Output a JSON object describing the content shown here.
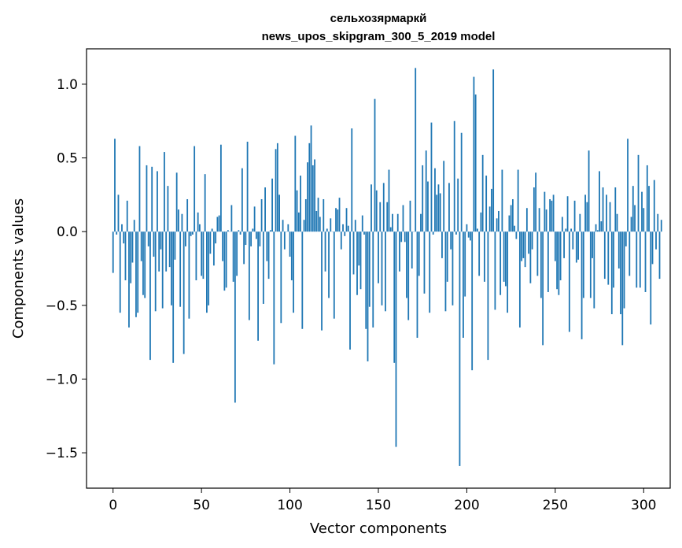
{
  "chart_data": {
    "type": "bar",
    "title": "сельхозярмаркй",
    "subtitle": "news_upos_skipgram_300_5_2019 model",
    "xlabel": "Vector components",
    "ylabel": "Components values",
    "xlim": [
      -15,
      315
    ],
    "ylim": [
      -1.74,
      1.24
    ],
    "xticks": [
      {
        "value": 0,
        "label": "0"
      },
      {
        "value": 50,
        "label": "50"
      },
      {
        "value": 100,
        "label": "100"
      },
      {
        "value": 150,
        "label": "150"
      },
      {
        "value": 200,
        "label": "200"
      },
      {
        "value": 250,
        "label": "250"
      },
      {
        "value": 300,
        "label": "300"
      }
    ],
    "yticks": [
      {
        "value": 1.0,
        "label": "1.0"
      },
      {
        "value": 0.5,
        "label": "0.5"
      },
      {
        "value": 0.0,
        "label": "0.0"
      },
      {
        "value": -0.5,
        "label": "−0.5"
      },
      {
        "value": -1.0,
        "label": "−1.0"
      },
      {
        "value": -1.5,
        "label": "−1.5"
      }
    ],
    "grid": false,
    "bar_color": "#1f77b4",
    "values": [
      -0.28,
      0.63,
      -0.02,
      0.25,
      -0.55,
      0.05,
      -0.08,
      -0.33,
      0.21,
      -0.65,
      -0.35,
      -0.21,
      0.08,
      -0.58,
      -0.55,
      0.58,
      -0.2,
      -0.43,
      -0.45,
      0.45,
      -0.1,
      -0.87,
      0.44,
      -0.17,
      -0.54,
      0.41,
      -0.27,
      -0.12,
      -0.52,
      0.54,
      -0.27,
      0.31,
      -0.24,
      -0.5,
      -0.89,
      -0.19,
      0.4,
      0.15,
      -0.51,
      0.12,
      -0.83,
      -0.1,
      0.22,
      -0.59,
      -0.03,
      -0.02,
      0.58,
      -0.33,
      0.13,
      0.05,
      -0.3,
      -0.32,
      0.39,
      -0.55,
      -0.5,
      -0.15,
      0.02,
      -0.23,
      -0.08,
      0.1,
      0.11,
      0.59,
      -0.2,
      -0.4,
      -0.38,
      0.01,
      0.0,
      0.18,
      -0.34,
      -1.16,
      -0.3,
      0.01,
      -0.02,
      0.43,
      -0.22,
      -0.09,
      0.61,
      -0.6,
      -0.1,
      0.02,
      0.17,
      -0.05,
      -0.74,
      -0.1,
      0.22,
      -0.49,
      0.3,
      -0.2,
      -0.32,
      0.01,
      0.36,
      -0.9,
      0.56,
      0.6,
      0.25,
      -0.62,
      0.08,
      -0.12,
      0.0,
      0.05,
      -0.17,
      -0.33,
      -0.55,
      0.65,
      0.28,
      0.13,
      0.38,
      -0.66,
      0.08,
      0.22,
      0.47,
      0.6,
      0.72,
      0.45,
      0.49,
      0.14,
      0.23,
      0.1,
      -0.67,
      0.22,
      -0.27,
      0.02,
      -0.45,
      0.09,
      0.0,
      -0.59,
      0.16,
      0.15,
      0.23,
      -0.12,
      0.05,
      -0.03,
      0.16,
      0.04,
      -0.8,
      0.7,
      -0.29,
      0.08,
      -0.43,
      -0.23,
      -0.39,
      0.11,
      -0.02,
      -0.66,
      -0.88,
      -0.51,
      0.32,
      -0.65,
      0.9,
      0.28,
      -0.35,
      0.2,
      -0.5,
      0.33,
      -0.54,
      0.2,
      0.42,
      0.03,
      0.12,
      -0.89,
      -1.46,
      0.12,
      -0.27,
      -0.07,
      0.18,
      -0.07,
      -0.45,
      -0.6,
      0.21,
      -0.25,
      0.0,
      1.11,
      -0.72,
      -0.3,
      0.12,
      0.45,
      -0.42,
      0.55,
      0.34,
      -0.55,
      0.74,
      -0.02,
      0.43,
      0.25,
      0.32,
      0.26,
      -0.18,
      0.48,
      -0.54,
      -0.34,
      0.33,
      -0.12,
      -0.5,
      0.75,
      -0.02,
      0.36,
      -1.59,
      0.67,
      -0.72,
      -0.44,
      0.05,
      -0.04,
      -0.06,
      -0.94,
      1.05,
      0.93,
      0.02,
      -0.3,
      0.13,
      0.52,
      -0.34,
      0.38,
      -0.87,
      0.17,
      0.29,
      1.1,
      -0.53,
      0.09,
      0.14,
      -0.43,
      0.42,
      -0.34,
      -0.37,
      -0.55,
      0.11,
      0.18,
      0.22,
      0.04,
      -0.05,
      0.42,
      -0.65,
      -0.2,
      -0.18,
      -0.24,
      0.16,
      -0.15,
      -0.35,
      -0.12,
      0.3,
      0.4,
      -0.3,
      0.16,
      -0.45,
      -0.77,
      0.27,
      0.15,
      -0.41,
      0.22,
      0.21,
      0.25,
      -0.2,
      -0.39,
      -0.43,
      -0.33,
      0.1,
      -0.18,
      0.02,
      0.24,
      -0.68,
      0.02,
      -0.12,
      0.21,
      -0.21,
      -0.19,
      0.12,
      -0.73,
      -0.45,
      0.25,
      0.2,
      0.55,
      -0.45,
      -0.18,
      -0.52,
      0.05,
      0.01,
      0.41,
      0.07,
      0.3,
      -0.32,
      0.25,
      -0.36,
      0.2,
      -0.56,
      -0.38,
      0.3,
      0.12,
      -0.25,
      -0.56,
      -0.77,
      -0.52,
      -0.1,
      0.63,
      -0.3,
      0.1,
      0.31,
      0.18,
      -0.38,
      0.52,
      -0.38,
      0.27,
      0.16,
      -0.41,
      0.45,
      0.31,
      -0.63,
      -0.22,
      0.35,
      -0.12,
      0.12,
      -0.32,
      0.08
    ]
  }
}
